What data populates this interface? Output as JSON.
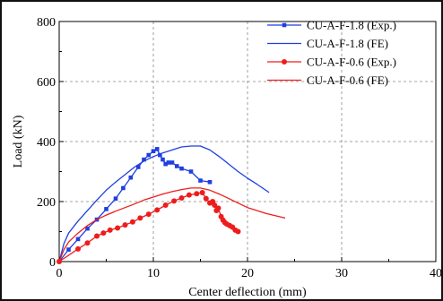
{
  "chart_data": {
    "type": "line",
    "xlabel": "Center deflection (mm)",
    "ylabel": "Load (kN)",
    "xlim": [
      0,
      40
    ],
    "ylim": [
      0,
      800
    ],
    "xticks": [
      "0",
      "10",
      "20",
      "30",
      "40"
    ],
    "yticks": [
      "0",
      "200",
      "400",
      "600",
      "800"
    ],
    "x_tick_values": [
      0,
      10,
      20,
      30,
      40
    ],
    "y_tick_values": [
      0,
      200,
      400,
      600,
      800
    ],
    "grid": true,
    "grid_style": "dashed",
    "legend_position": "top-right",
    "series": [
      {
        "name": "CU-A-F-1.8 (Exp.)",
        "color": "#1f3fe0",
        "marker": "square",
        "style": "solid",
        "x": [
          0,
          1,
          2,
          3,
          4,
          5,
          6,
          6.8,
          7.6,
          8.4,
          9,
          9.5,
          10,
          10.4,
          10.7,
          11,
          11.3,
          11.6,
          12,
          12.5,
          13,
          14,
          15,
          16
        ],
        "y": [
          0,
          40,
          75,
          110,
          140,
          175,
          210,
          245,
          280,
          315,
          340,
          355,
          368,
          375,
          355,
          340,
          325,
          330,
          330,
          318,
          310,
          300,
          270,
          265
        ]
      },
      {
        "name": "CU-A-F-1.8 (FE)",
        "color": "#1f3fe0",
        "marker": "none",
        "style": "solid",
        "x": [
          0,
          0.5,
          1,
          2,
          3,
          4,
          5,
          6,
          7,
          8,
          9,
          10,
          11,
          12,
          13,
          14,
          15,
          16,
          17,
          18,
          19,
          20,
          21,
          22.3
        ],
        "y": [
          0,
          60,
          95,
          135,
          170,
          205,
          238,
          265,
          290,
          315,
          335,
          350,
          362,
          372,
          382,
          385,
          385,
          372,
          350,
          325,
          300,
          278,
          258,
          230
        ]
      },
      {
        "name": "CU-A-F-0.6 (Exp.)",
        "color": "#ee1c1c",
        "marker": "circle",
        "style": "solid",
        "x": [
          0,
          2,
          3,
          4,
          4.7,
          5.4,
          6.2,
          7,
          7.8,
          8.6,
          9.5,
          10.4,
          11.3,
          12.2,
          13,
          13.8,
          14.6,
          15.2,
          15.6,
          16,
          16.3,
          16.5,
          16.7,
          16.9,
          17.2,
          17.4,
          17.6,
          17.8,
          18.1,
          18.4,
          18.7,
          19
        ],
        "y": [
          0,
          42,
          62,
          85,
          95,
          105,
          112,
          122,
          132,
          145,
          158,
          172,
          188,
          202,
          212,
          222,
          226,
          230,
          210,
          195,
          200,
          188,
          170,
          178,
          150,
          138,
          130,
          125,
          120,
          115,
          105,
          100
        ]
      },
      {
        "name": "CU-A-F-0.6 (FE)",
        "color": "#ee1c1c",
        "marker": "none",
        "style": "solid",
        "x": [
          0,
          0.5,
          1,
          2,
          3,
          4,
          5,
          6,
          7,
          8,
          9,
          10,
          11,
          12,
          13,
          14,
          15,
          16,
          17,
          18,
          19,
          20,
          22,
          24
        ],
        "y": [
          0,
          40,
          65,
          95,
          120,
          140,
          155,
          168,
          180,
          192,
          205,
          215,
          225,
          233,
          240,
          245,
          245,
          238,
          225,
          210,
          195,
          180,
          160,
          145
        ]
      }
    ]
  }
}
